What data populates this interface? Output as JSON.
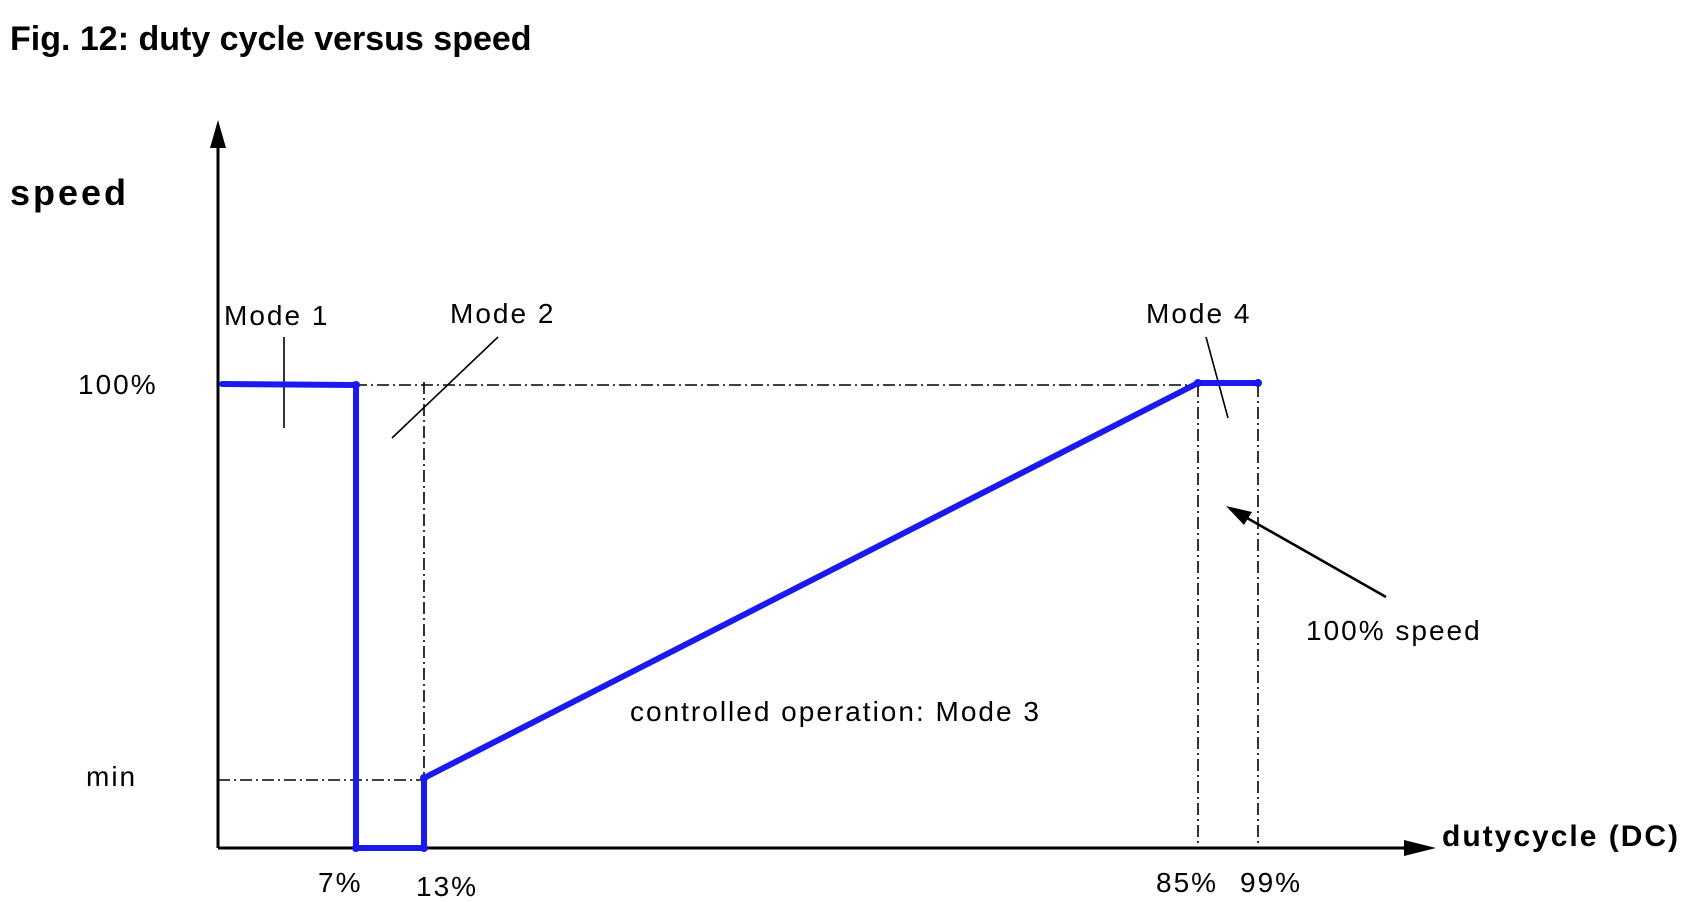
{
  "title": "Fig. 12: duty cycle versus speed",
  "axes": {
    "y_label": "speed",
    "x_label": "dutycycle (DC)"
  },
  "y_ticks": {
    "max": "100%",
    "min": "min"
  },
  "x_ticks": [
    "7%",
    "13%",
    "85%",
    "99%"
  ],
  "modes": {
    "mode1": "Mode 1",
    "mode2": "Mode 2",
    "mode3": "controlled operation: Mode 3",
    "mode4": "Mode 4"
  },
  "annotation": "100% speed",
  "colors": {
    "curve": "#1a1aee",
    "axis": "#000000"
  }
}
